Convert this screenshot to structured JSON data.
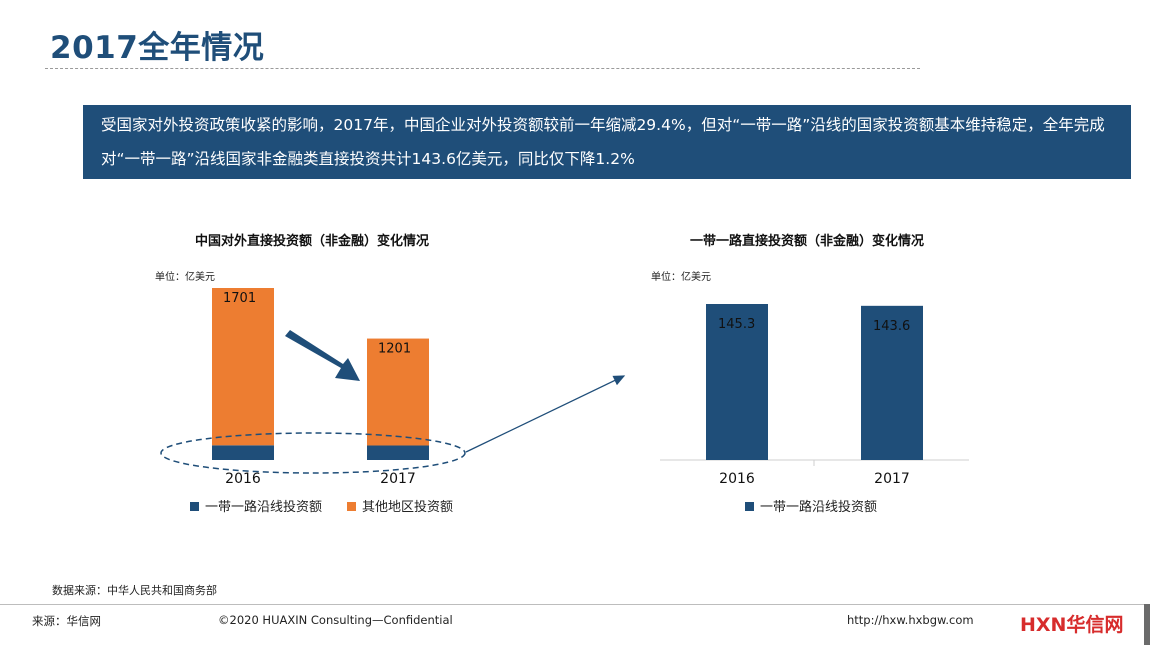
{
  "page": {
    "title": "2017全年情况",
    "summary": "受国家对外投资政策收紧的影响，2017年，中国企业对外投资额较前一年缩减29.4%，但对“一带一路”沿线的国家投资额基本维持稳定，全年完成对“一带一路”沿线国家非金融类直接投资共计143.6亿美元，同比仅下降1.2%",
    "source_note": "数据来源：中华人民共和国商务部",
    "footer": {
      "source": "来源：华信网",
      "copyright": "©2020 HUAXIN Consulting—Confidential",
      "url": "http://hxw.hxbgw.com",
      "logo_latin": "HXN",
      "logo_cn": "华信网"
    }
  },
  "chart_data": [
    {
      "type": "bar",
      "stacked": true,
      "title": "中国对外直接投资额（非金融）变化情况",
      "unit": "单位：亿美元",
      "categories": [
        "2016",
        "2017"
      ],
      "totals": [
        1701,
        1201
      ],
      "series": [
        {
          "name": "一带一路沿线投资额",
          "color": "#1F4E79",
          "values": [
            145.3,
            143.6
          ]
        },
        {
          "name": "其他地区投资额",
          "color": "#ED7D31",
          "values": [
            1555.7,
            1057.4
          ]
        }
      ],
      "ylim": [
        0,
        1800
      ],
      "grid": false,
      "legend": "bottom"
    },
    {
      "type": "bar",
      "title": "一带一路直接投资额（非金融）变化情况",
      "unit": "单位：亿美元",
      "categories": [
        "2016",
        "2017"
      ],
      "series": [
        {
          "name": "一带一路沿线投资额",
          "color": "#1F4E79",
          "values": [
            145.3,
            143.6
          ]
        }
      ],
      "ylim": [
        0,
        160
      ],
      "grid": false,
      "legend": "bottom"
    }
  ]
}
